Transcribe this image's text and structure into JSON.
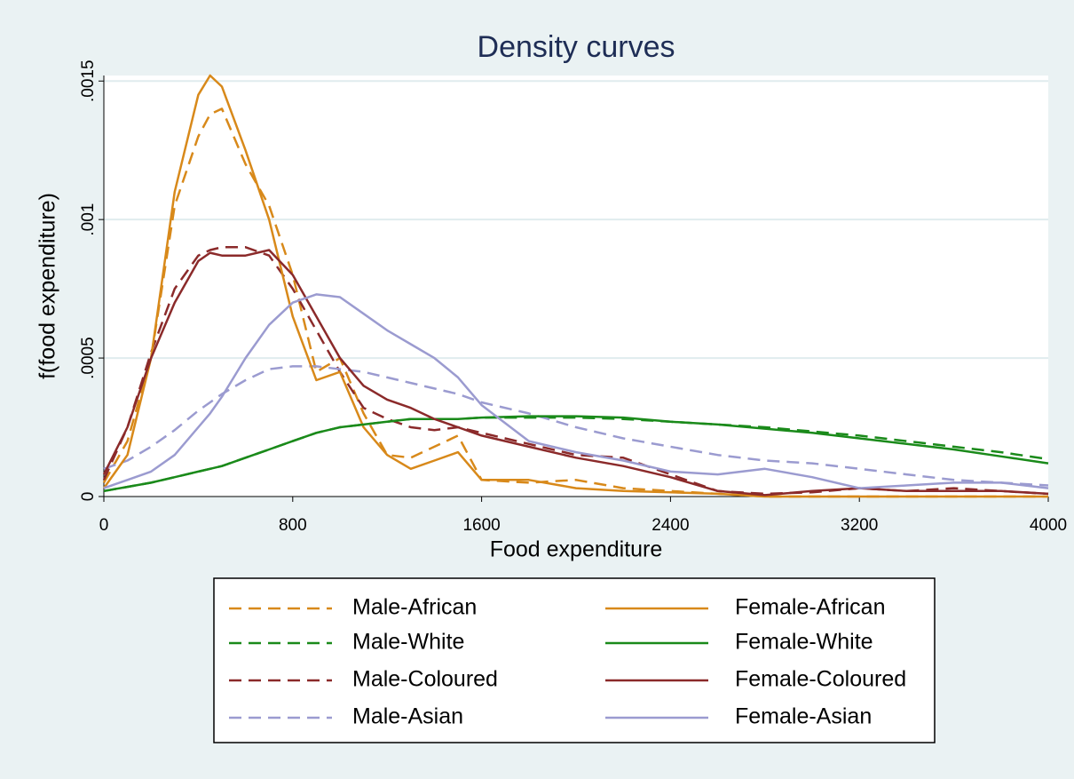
{
  "chart_data": {
    "type": "line",
    "title": "Density curves",
    "x_label": "Food expenditure",
    "y_label": "f(food expenditure)",
    "x": [
      0,
      100,
      200,
      300,
      400,
      450,
      500,
      600,
      700,
      800,
      900,
      1000,
      1100,
      1200,
      1300,
      1400,
      1500,
      1600,
      1800,
      2000,
      2200,
      2400,
      2600,
      2800,
      3000,
      3200,
      3400,
      3600,
      3800,
      4000
    ],
    "xlim": [
      0,
      4000
    ],
    "xticks": [
      0,
      800,
      1600,
      2400,
      3200,
      4000
    ],
    "ylim": [
      0,
      0.00152
    ],
    "yticks": [
      0,
      {
        "value": 0.0005,
        "label": ".0005"
      },
      {
        "value": 0.001,
        "label": ".001"
      },
      {
        "value": 0.0015,
        "label": ".0015"
      }
    ],
    "grid": true,
    "series": [
      {
        "name": "Male-African",
        "color": "#d8891a",
        "dashed": true,
        "values": [
          5e-05,
          0.0002,
          0.0005,
          0.00105,
          0.0013,
          0.00138,
          0.0014,
          0.0012,
          0.00105,
          0.0008,
          0.00045,
          0.0005,
          0.0003,
          0.00015,
          0.00014,
          0.00018,
          0.00022,
          6e-05,
          5e-05,
          6e-05,
          3e-05,
          2e-05,
          1e-05,
          0,
          0,
          0,
          0,
          0,
          0,
          0
        ]
      },
      {
        "name": "Male-White",
        "color": "#1a8a1a",
        "dashed": true,
        "values": [
          2e-05,
          3.5e-05,
          5e-05,
          7e-05,
          9e-05,
          0.0001,
          0.00011,
          0.00014,
          0.00017,
          0.0002,
          0.00023,
          0.00025,
          0.00026,
          0.00027,
          0.00028,
          0.00028,
          0.00028,
          0.000285,
          0.000285,
          0.000285,
          0.00028,
          0.00027,
          0.00026,
          0.00025,
          0.000235,
          0.00022,
          0.0002,
          0.00018,
          0.00016,
          0.000135
        ]
      },
      {
        "name": "Male-Coloured",
        "color": "#8b2a2a",
        "dashed": true,
        "values": [
          6e-05,
          0.00025,
          0.00052,
          0.00075,
          0.00087,
          0.00089,
          0.0009,
          0.0009,
          0.00087,
          0.00075,
          0.0006,
          0.00045,
          0.00032,
          0.00028,
          0.00025,
          0.00024,
          0.00025,
          0.00023,
          0.00019,
          0.00015,
          0.00014,
          8e-05,
          2e-05,
          1e-05,
          1.5e-05,
          3e-05,
          2e-05,
          3e-05,
          2e-05,
          1e-05
        ]
      },
      {
        "name": "Male-Asian",
        "color": "#9b9bd0",
        "dashed": true,
        "values": [
          0.0001,
          0.00013,
          0.00018,
          0.00024,
          0.00031,
          0.00034,
          0.00037,
          0.00042,
          0.00046,
          0.00047,
          0.00047,
          0.00046,
          0.00045,
          0.00043,
          0.00041,
          0.00039,
          0.00037,
          0.00034,
          0.0003,
          0.00025,
          0.00021,
          0.00018,
          0.00015,
          0.00013,
          0.00012,
          0.0001,
          8e-05,
          6e-05,
          5e-05,
          4e-05
        ]
      },
      {
        "name": "Female-African",
        "color": "#d8891a",
        "dashed": false,
        "values": [
          3e-05,
          0.00015,
          0.0005,
          0.0011,
          0.00145,
          0.00152,
          0.00148,
          0.00125,
          0.001,
          0.00065,
          0.00042,
          0.00045,
          0.00025,
          0.00015,
          0.0001,
          0.00013,
          0.00016,
          6e-05,
          6e-05,
          3e-05,
          2e-05,
          1.5e-05,
          1e-05,
          0,
          0,
          0,
          0,
          0,
          0,
          0
        ]
      },
      {
        "name": "Female-White",
        "color": "#1a8a1a",
        "dashed": false,
        "values": [
          2e-05,
          3.5e-05,
          5e-05,
          7e-05,
          9e-05,
          0.0001,
          0.00011,
          0.00014,
          0.00017,
          0.0002,
          0.00023,
          0.00025,
          0.00026,
          0.00027,
          0.00028,
          0.00028,
          0.00028,
          0.000285,
          0.00029,
          0.00029,
          0.000285,
          0.00027,
          0.00026,
          0.000245,
          0.00023,
          0.00021,
          0.00019,
          0.00017,
          0.000145,
          0.00012
        ]
      },
      {
        "name": "Female-Coloured",
        "color": "#8b2a2a",
        "dashed": false,
        "values": [
          8e-05,
          0.00025,
          0.0005,
          0.0007,
          0.00085,
          0.00088,
          0.00087,
          0.00087,
          0.00089,
          0.0008,
          0.00065,
          0.0005,
          0.0004,
          0.00035,
          0.00032,
          0.00028,
          0.00025,
          0.00022,
          0.00018,
          0.00014,
          0.00011,
          7e-05,
          2e-05,
          5e-06,
          2e-05,
          3e-05,
          2e-05,
          2e-05,
          2e-05,
          1e-05
        ]
      },
      {
        "name": "Female-Asian",
        "color": "#9b9bd0",
        "dashed": false,
        "values": [
          3e-05,
          6e-05,
          9e-05,
          0.00015,
          0.00025,
          0.0003,
          0.00036,
          0.0005,
          0.00062,
          0.0007,
          0.00073,
          0.00072,
          0.00066,
          0.0006,
          0.00055,
          0.0005,
          0.00043,
          0.00033,
          0.0002,
          0.00016,
          0.00013,
          9e-05,
          8e-05,
          0.0001,
          7e-05,
          3e-05,
          4e-05,
          5e-05,
          5e-05,
          3e-05
        ]
      }
    ]
  }
}
